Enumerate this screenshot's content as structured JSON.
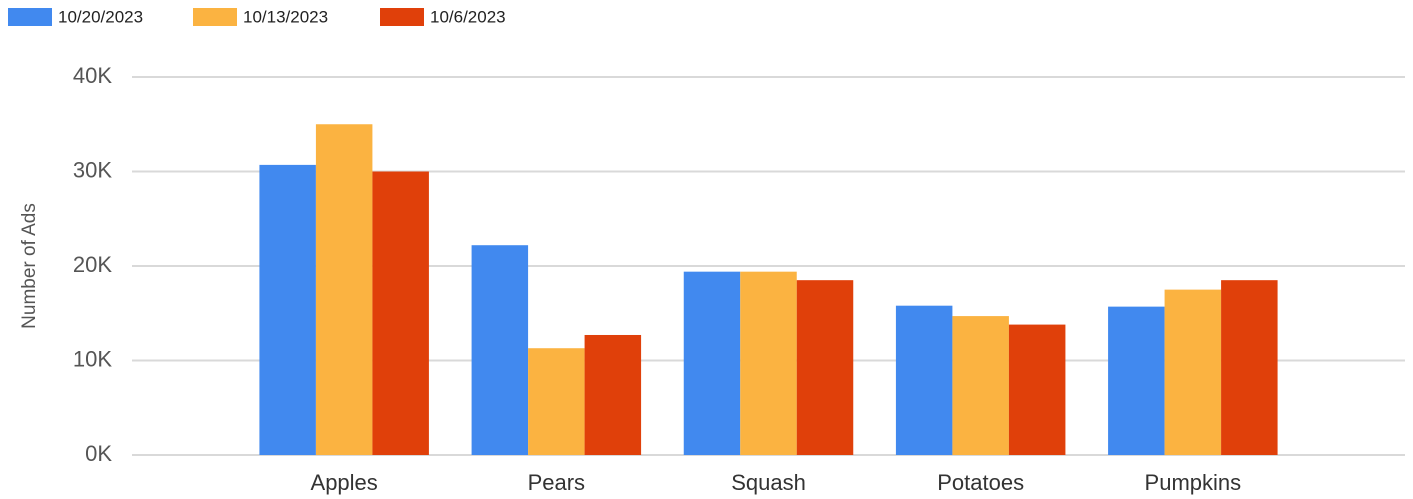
{
  "chart_data": {
    "type": "bar",
    "y_label": "Number of Ads",
    "categories": [
      "Apples",
      "Pears",
      "Squash",
      "Potatoes",
      "Pumpkins"
    ],
    "series": [
      {
        "name": "10/20/2023",
        "color": "#4189ef",
        "values": [
          30700,
          22200,
          19400,
          15800,
          15700
        ]
      },
      {
        "name": "10/13/2023",
        "color": "#fbb341",
        "values": [
          35000,
          11300,
          19400,
          14700,
          17500
        ]
      },
      {
        "name": "10/6/2023",
        "color": "#e0400a",
        "values": [
          30000,
          12700,
          18500,
          13800,
          18500
        ]
      }
    ],
    "ylim": [
      0,
      40000
    ],
    "yticks": [
      {
        "value": 0,
        "label": "0K"
      },
      {
        "value": 10000,
        "label": "10K"
      },
      {
        "value": 20000,
        "label": "20K"
      },
      {
        "value": 30000,
        "label": "30K"
      },
      {
        "value": 40000,
        "label": "40K"
      }
    ],
    "grid": true,
    "legend": "top"
  }
}
